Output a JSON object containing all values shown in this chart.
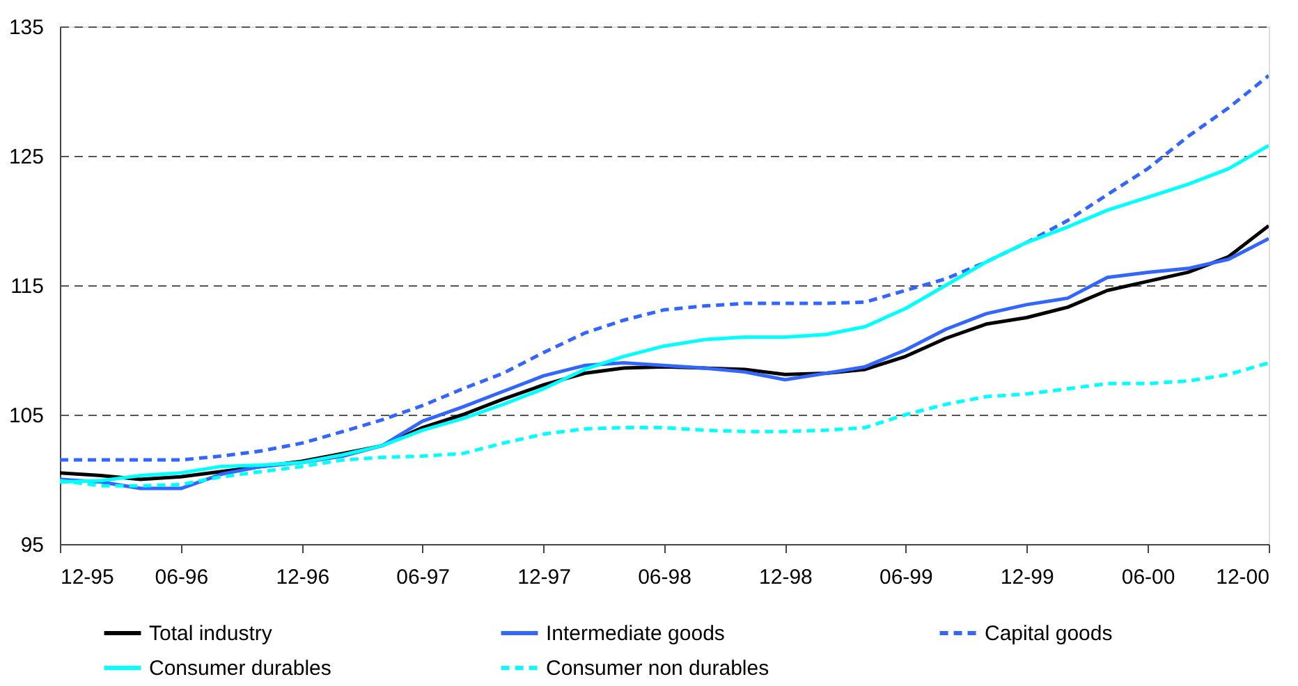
{
  "chart_data": {
    "type": "line",
    "x": [
      "1995-12",
      "1996-02",
      "1996-04",
      "1996-06",
      "1996-08",
      "1996-10",
      "1996-12",
      "1997-02",
      "1997-04",
      "1997-06",
      "1997-08",
      "1997-10",
      "1997-12",
      "1998-02",
      "1998-04",
      "1998-06",
      "1998-08",
      "1998-10",
      "1998-12",
      "1999-02",
      "1999-04",
      "1999-06",
      "1999-08",
      "1999-10",
      "1999-12",
      "2000-02",
      "2000-04",
      "2000-06",
      "2000-08",
      "2000-10",
      "2000-12"
    ],
    "series": [
      {
        "name": "Total industry",
        "color": "#000000",
        "line_style": "solid",
        "values": [
          100.5,
          100.3,
          100.0,
          100.2,
          100.6,
          101.0,
          101.4,
          102.0,
          102.6,
          104.0,
          105.0,
          106.2,
          107.3,
          108.2,
          108.6,
          108.7,
          108.6,
          108.5,
          108.1,
          108.2,
          108.5,
          109.5,
          110.9,
          112.0,
          112.5,
          113.3,
          114.6,
          115.3,
          116.0,
          117.2,
          119.6
        ]
      },
      {
        "name": "Intermediate goods",
        "color": "#3366ff",
        "line_style": "solid",
        "values": [
          100.0,
          99.8,
          99.3,
          99.3,
          100.4,
          101.0,
          101.3,
          101.8,
          102.6,
          104.5,
          105.6,
          106.8,
          108.0,
          108.8,
          109.0,
          108.8,
          108.6,
          108.3,
          107.7,
          108.2,
          108.7,
          110.0,
          111.6,
          112.8,
          113.5,
          114.0,
          115.6,
          116.0,
          116.3,
          117.0,
          118.6
        ]
      },
      {
        "name": "Capital goods",
        "color": "#3366ff",
        "line_style": "dashed",
        "values": [
          101.5,
          101.5,
          101.5,
          101.5,
          101.8,
          102.2,
          102.8,
          103.7,
          104.6,
          105.7,
          107.0,
          108.2,
          109.8,
          111.3,
          112.3,
          113.1,
          113.4,
          113.6,
          113.6,
          113.6,
          113.7,
          114.6,
          115.5,
          116.8,
          118.3,
          120.0,
          122.0,
          124.0,
          126.5,
          128.7,
          131.2
        ]
      },
      {
        "name": "Consumer durables",
        "color": "#00ffff",
        "line_style": "solid",
        "values": [
          99.8,
          99.9,
          100.3,
          100.5,
          101.0,
          101.1,
          101.3,
          101.9,
          102.6,
          103.8,
          104.7,
          105.8,
          107.0,
          108.5,
          109.5,
          110.3,
          110.8,
          111.0,
          111.0,
          111.2,
          111.8,
          113.2,
          115.0,
          116.8,
          118.3,
          119.5,
          120.8,
          121.8,
          122.8,
          124.0,
          125.8
        ]
      },
      {
        "name": "Consumer non durables",
        "color": "#00ffff",
        "line_style": "dashed",
        "values": [
          99.9,
          99.5,
          99.5,
          99.6,
          100.2,
          100.6,
          101.0,
          101.5,
          101.7,
          101.8,
          102.0,
          102.8,
          103.5,
          103.9,
          104.0,
          104.0,
          103.8,
          103.7,
          103.7,
          103.8,
          104.0,
          105.0,
          105.8,
          106.4,
          106.6,
          107.0,
          107.4,
          107.4,
          107.6,
          108.1,
          109.0
        ]
      }
    ],
    "xlim": [
      "1995-12",
      "2000-12"
    ],
    "xticks": [
      {
        "value": "1995-12",
        "label": "12-95"
      },
      {
        "value": "1996-06",
        "label": "06-96"
      },
      {
        "value": "1996-12",
        "label": "12-96"
      },
      {
        "value": "1997-06",
        "label": "06-97"
      },
      {
        "value": "1997-12",
        "label": "12-97"
      },
      {
        "value": "1998-06",
        "label": "06-98"
      },
      {
        "value": "1998-12",
        "label": "12-98"
      },
      {
        "value": "1999-06",
        "label": "06-99"
      },
      {
        "value": "1999-12",
        "label": "12-99"
      },
      {
        "value": "2000-06",
        "label": "06-00"
      },
      {
        "value": "2000-12",
        "label": "12-00"
      }
    ],
    "ylim": [
      95,
      135
    ],
    "yticks": [
      95,
      105,
      115,
      125,
      135
    ],
    "grid": "y",
    "legend": "bottom",
    "marker": "none"
  }
}
